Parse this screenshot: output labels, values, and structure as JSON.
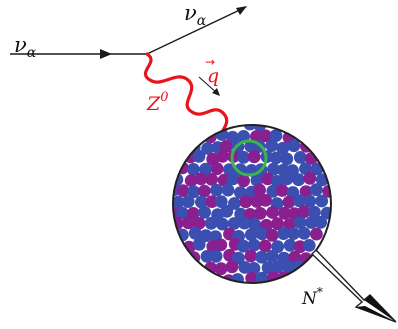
{
  "labels": {
    "nu_in": "ν",
    "nu_in_sub": "α",
    "nu_out": "ν",
    "nu_out_sub": "α",
    "boson": "Z",
    "boson_sup": "0",
    "momentum": "q",
    "momentum_arrow": "→",
    "nucleus_state": "N",
    "nucleus_state_sup": "*"
  },
  "colors": {
    "lepton_line": "#1a1a1a",
    "boson": "#e8141c",
    "proton": "#3b4fb0",
    "neutron": "#8a1f8f",
    "highlight_ring": "#39b54a",
    "nucleus_outline": "#222222",
    "recoil_arrow": "#222222"
  }
}
